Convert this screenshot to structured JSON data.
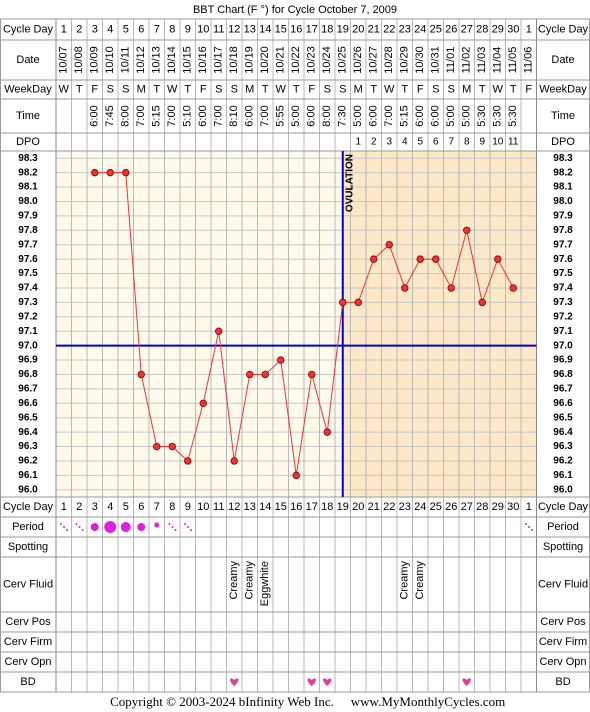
{
  "chart_data": {
    "type": "line",
    "title": "BBT Chart (F °) for Cycle October 7, 2009",
    "row_labels": {
      "cycle_day": "Cycle Day",
      "date": "Date",
      "weekday": "WeekDay",
      "time": "Time",
      "dpo": "DPO",
      "period": "Period",
      "spotting": "Spotting",
      "cerv_fluid": "Cerv Fluid",
      "cerv_pos": "Cerv Pos",
      "cerv_firm": "Cerv Firm",
      "cerv_opn": "Cerv Opn",
      "bd": "BD"
    },
    "categories": [
      1,
      2,
      3,
      4,
      5,
      6,
      7,
      8,
      9,
      10,
      11,
      12,
      13,
      14,
      15,
      16,
      17,
      18,
      19,
      20,
      21,
      22,
      23,
      24,
      25,
      26,
      27,
      28,
      29,
      30,
      1
    ],
    "dates": [
      "10/07",
      "10/08",
      "10/09",
      "10/10",
      "10/11",
      "10/12",
      "10/13",
      "10/14",
      "10/15",
      "10/16",
      "10/17",
      "10/18",
      "10/19",
      "10/20",
      "10/21",
      "10/22",
      "10/23",
      "10/24",
      "10/25",
      "10/26",
      "10/27",
      "10/28",
      "10/29",
      "10/30",
      "10/31",
      "11/01",
      "11/02",
      "11/03",
      "11/04",
      "11/05",
      "11/06"
    ],
    "weekdays": [
      "W",
      "T",
      "F",
      "S",
      "S",
      "M",
      "T",
      "W",
      "T",
      "F",
      "S",
      "S",
      "M",
      "T",
      "W",
      "T",
      "F",
      "S",
      "S",
      "M",
      "T",
      "W",
      "T",
      "F",
      "S",
      "S",
      "M",
      "T",
      "W",
      "T",
      "F"
    ],
    "times": [
      null,
      null,
      "6:00",
      "7:45",
      "8:00",
      "7:00",
      "5:15",
      "7:00",
      "5:10",
      "6:00",
      "7:00",
      "8:10",
      "6:00",
      "7:00",
      "5:55",
      "5:00",
      "6:00",
      "8:00",
      "7:30",
      "5:00",
      "6:00",
      "7:00",
      "5:15",
      "6:00",
      "6:00",
      "5:00",
      "5:00",
      "5:30",
      "5:30",
      "5:30",
      null
    ],
    "dpo": [
      null,
      null,
      null,
      null,
      null,
      null,
      null,
      null,
      null,
      null,
      null,
      null,
      null,
      null,
      null,
      null,
      null,
      null,
      null,
      1,
      2,
      3,
      4,
      5,
      6,
      7,
      8,
      9,
      10,
      11,
      null
    ],
    "values": [
      null,
      null,
      98.2,
      98.2,
      98.2,
      96.8,
      96.3,
      96.3,
      96.2,
      96.6,
      97.1,
      96.2,
      96.8,
      96.8,
      96.9,
      96.1,
      96.8,
      96.4,
      97.3,
      97.3,
      97.6,
      97.7,
      97.4,
      97.6,
      97.6,
      97.4,
      97.8,
      97.3,
      97.6,
      97.4,
      null
    ],
    "color": "#ee3333",
    "ylim": [
      95.95,
      98.35
    ],
    "yticks": [
      {
        "value": 98.3,
        "label": "98.3"
      },
      98.2,
      98.1,
      {
        "value": 98.0,
        "label": "98.0"
      },
      97.9,
      97.8,
      97.7,
      97.6,
      97.5,
      97.4,
      97.3,
      97.2,
      97.1,
      {
        "value": 97.0,
        "label": "97.0"
      },
      96.9,
      96.8,
      96.7,
      96.6,
      96.5,
      96.4,
      96.3,
      96.2,
      96.1,
      {
        "value": 96.0,
        "label": "96.0"
      }
    ],
    "grid": true,
    "coverline": 97.0,
    "ovulation": {
      "label": "OVULATION",
      "cycle_day": 19
    },
    "cerv_fluid": [
      null,
      null,
      null,
      null,
      null,
      null,
      null,
      null,
      null,
      null,
      null,
      "Creamy",
      "Creamy",
      "Eggwhite",
      null,
      null,
      null,
      null,
      null,
      null,
      null,
      null,
      "Creamy",
      "Creamy",
      null,
      null,
      null,
      null,
      null,
      null,
      null
    ],
    "copyright": "Copyright © 2003-2024 bInfinity Web Inc.",
    "website": "www.MyMonthlyCycles.com"
  }
}
